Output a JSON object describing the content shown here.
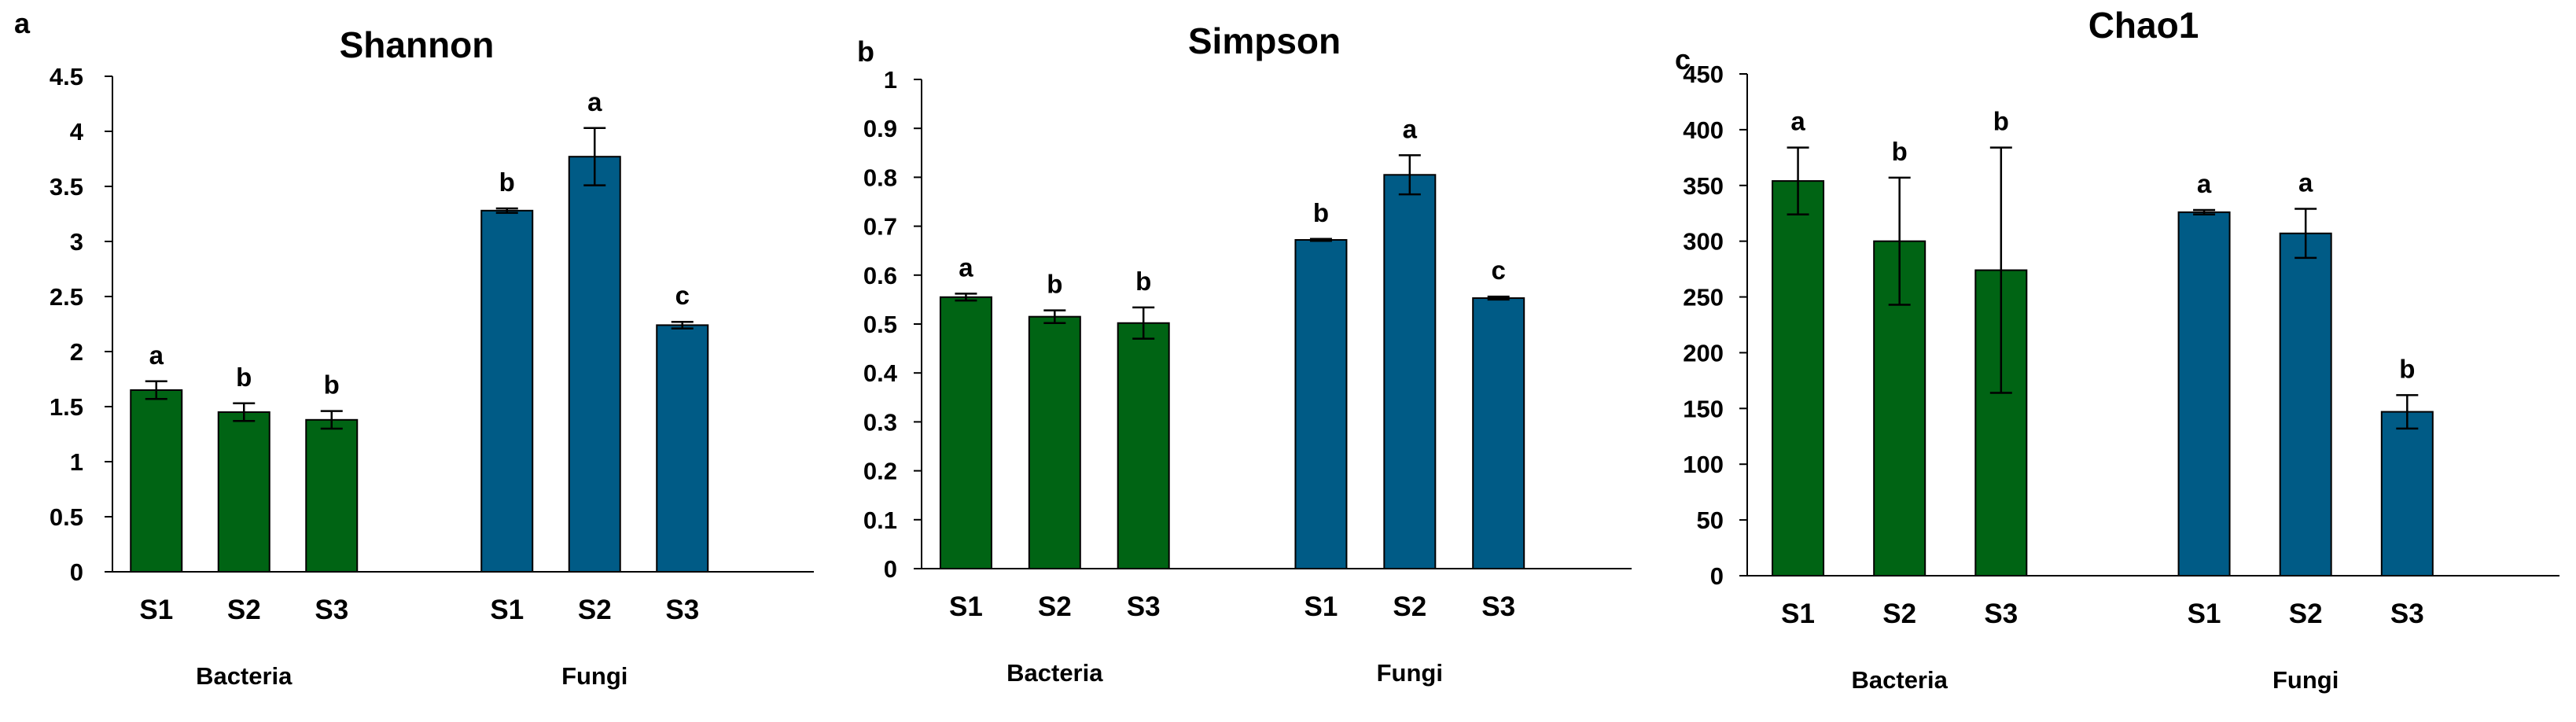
{
  "colors": {
    "bacteria": "#006414",
    "fungi": "#005B86",
    "axis": "#000000"
  },
  "chart_data": [
    {
      "panel": "a",
      "type": "bar",
      "title": "Shannon",
      "ylim": [
        0,
        4.5
      ],
      "yticks": [
        "0",
        "0.5",
        "1",
        "1.5",
        "2",
        "2.5",
        "3",
        "3.5",
        "4",
        "4.5"
      ],
      "ytick_values": [
        0,
        0.5,
        1,
        1.5,
        2,
        2.5,
        3,
        3.5,
        4,
        4.5
      ],
      "grid": false,
      "groups": [
        {
          "name": "Bacteria",
          "categories": [
            "S1",
            "S2",
            "S3"
          ],
          "values": [
            1.65,
            1.45,
            1.38
          ],
          "errors": [
            0.08,
            0.08,
            0.08
          ],
          "letters": [
            "a",
            "b",
            "b"
          ]
        },
        {
          "name": "Fungi",
          "categories": [
            "S1",
            "S2",
            "S3"
          ],
          "values": [
            3.28,
            3.77,
            2.24
          ],
          "errors": [
            0.02,
            0.26,
            0.03
          ],
          "letters": [
            "b",
            "a",
            "c"
          ]
        }
      ]
    },
    {
      "panel": "b",
      "type": "bar",
      "title": "Simpson",
      "ylim": [
        0,
        1
      ],
      "yticks": [
        "0",
        "0.1",
        "0.2",
        "0.3",
        "0.4",
        "0.5",
        "0.6",
        "0.7",
        "0.8",
        "0.9",
        "1"
      ],
      "ytick_values": [
        0,
        0.1,
        0.2,
        0.3,
        0.4,
        0.5,
        0.6,
        0.7,
        0.8,
        0.9,
        1
      ],
      "grid": false,
      "groups": [
        {
          "name": "Bacteria",
          "categories": [
            "S1",
            "S2",
            "S3"
          ],
          "values": [
            0.555,
            0.515,
            0.502
          ],
          "errors": [
            0.007,
            0.013,
            0.032
          ],
          "letters": [
            "a",
            "b",
            "b"
          ]
        },
        {
          "name": "Fungi",
          "categories": [
            "S1",
            "S2",
            "S3"
          ],
          "values": [
            0.672,
            0.805,
            0.553
          ],
          "errors": [
            0.002,
            0.04,
            0.003
          ],
          "letters": [
            "b",
            "a",
            "c"
          ]
        }
      ]
    },
    {
      "panel": "c",
      "type": "bar",
      "title": "Chao1",
      "ylim": [
        0,
        450
      ],
      "yticks": [
        "0",
        "50",
        "100",
        "150",
        "200",
        "250",
        "300",
        "350",
        "400",
        "450"
      ],
      "ytick_values": [
        0,
        50,
        100,
        150,
        200,
        250,
        300,
        350,
        400,
        450
      ],
      "grid": false,
      "groups": [
        {
          "name": "Bacteria",
          "categories": [
            "S1",
            "S2",
            "S3"
          ],
          "values": [
            354,
            300,
            274
          ],
          "errors": [
            30,
            57,
            110
          ],
          "letters": [
            "a",
            "b",
            "b"
          ]
        },
        {
          "name": "Fungi",
          "categories": [
            "S1",
            "S2",
            "S3"
          ],
          "values": [
            326,
            307,
            147
          ],
          "errors": [
            2,
            22,
            15
          ],
          "letters": [
            "a",
            "a",
            "b"
          ]
        }
      ]
    }
  ]
}
